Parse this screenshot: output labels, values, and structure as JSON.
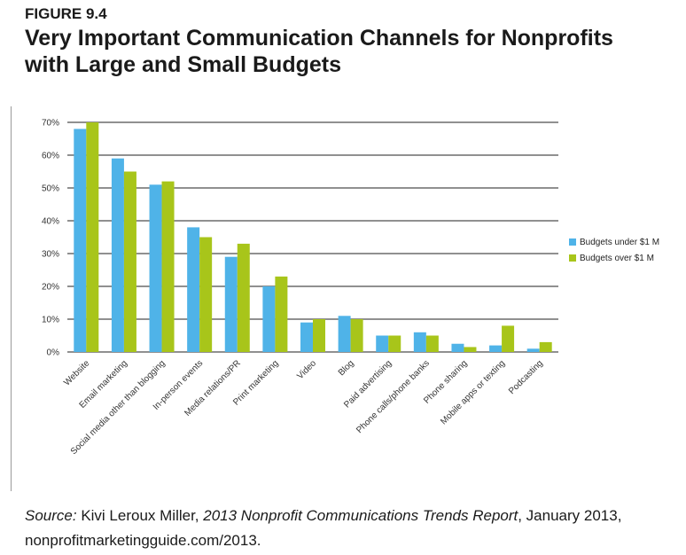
{
  "figure_label": "FIGURE 9.4",
  "title_line1": "Very Important Communication Channels for Nonprofits",
  "title_line2": "with Large and Small Budgets",
  "source": {
    "lead": "Source:",
    "author": " Kivi Leroux Miller, ",
    "report": "2013 Nonprofit Communications Trends Report",
    "rest": ", January 2013, nonprofitmarketingguide.com/2013."
  },
  "colors": {
    "under": "#4fb3e8",
    "over": "#a8c51a",
    "grid": "#222222"
  },
  "chart_data": {
    "type": "bar",
    "categories": [
      "Website",
      "Email marketing",
      "Social media other than blogging",
      "In-person events",
      "Media relations/PR",
      "Print marketing",
      "Video",
      "Blog",
      "Paid advertising",
      "Phone calls/phone banks",
      "Phone sharing",
      "Mobile apps or texting",
      "Podcasting"
    ],
    "series": [
      {
        "name": "Budgets under $1 M",
        "values": [
          68,
          59,
          51,
          38,
          29,
          20,
          9,
          11,
          5,
          6,
          2.5,
          2,
          1
        ]
      },
      {
        "name": "Budgets over $1 M",
        "values": [
          70,
          55,
          52,
          35,
          33,
          23,
          10,
          10,
          5,
          5,
          1.5,
          8,
          3
        ]
      }
    ],
    "yticks": [
      "0%",
      "10%",
      "20%",
      "30%",
      "40%",
      "50%",
      "60%",
      "70%"
    ],
    "ylim": [
      0,
      70
    ],
    "grid": true,
    "legend": "right"
  }
}
